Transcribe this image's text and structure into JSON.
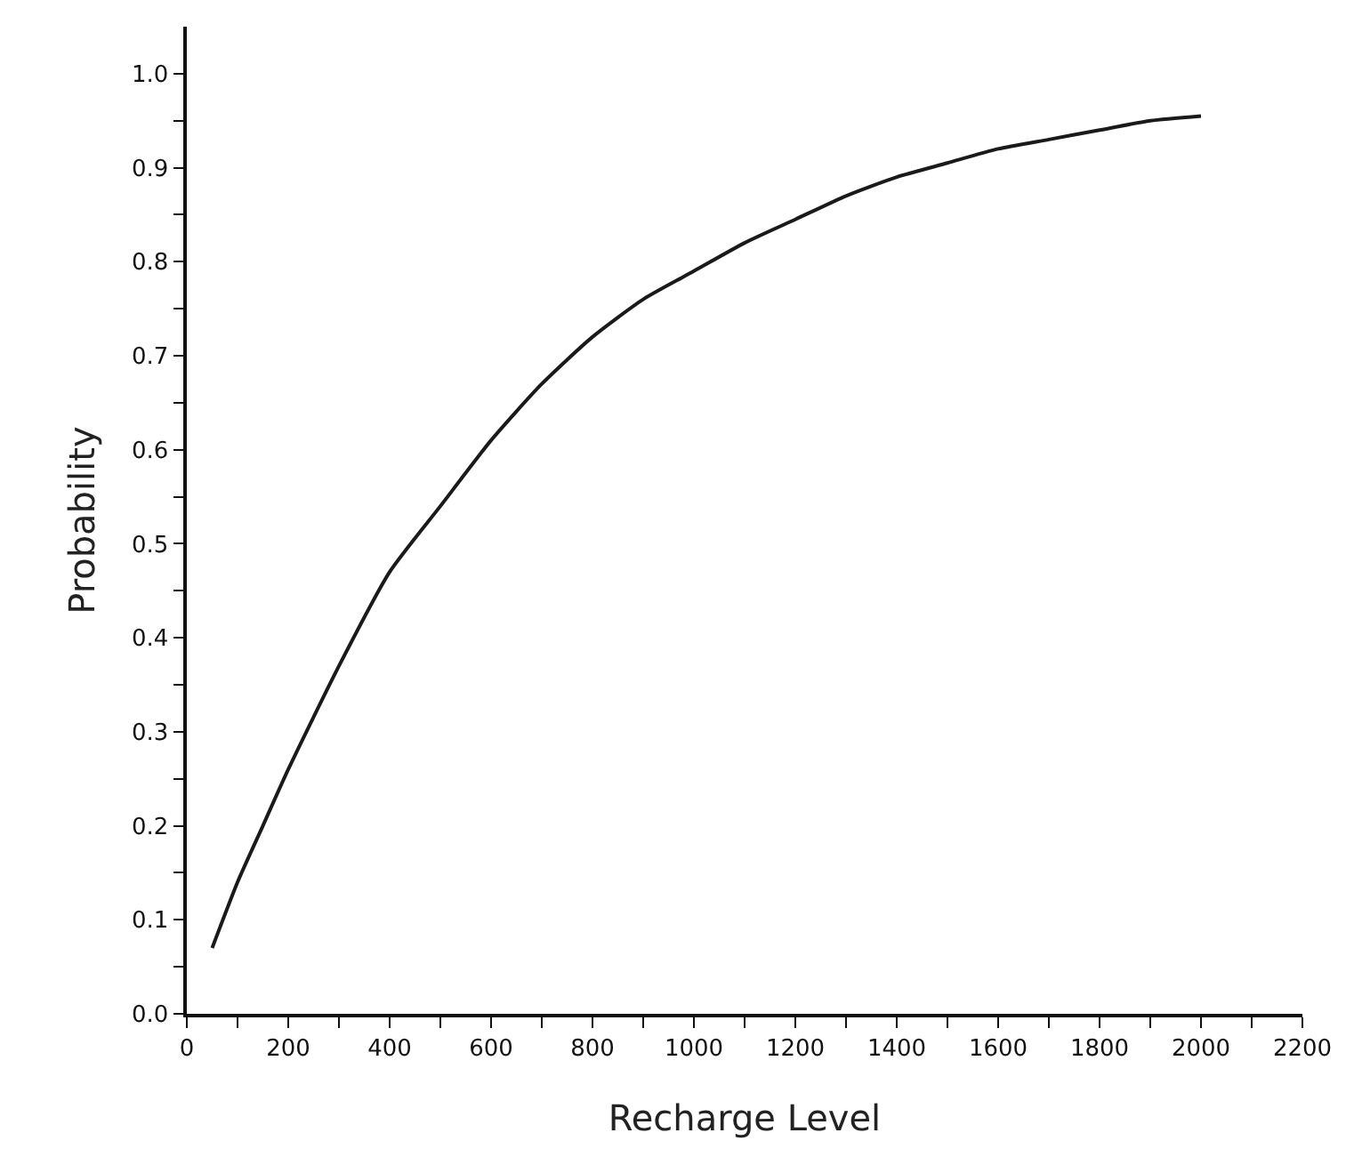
{
  "chart_data": {
    "type": "line",
    "xlabel": "Recharge Level",
    "ylabel": "Probability",
    "x": [
      50,
      100,
      150,
      200,
      300,
      400,
      500,
      600,
      700,
      800,
      900,
      1000,
      1100,
      1200,
      1300,
      1400,
      1500,
      1600,
      1700,
      1800,
      1900,
      2000
    ],
    "series": [
      {
        "color": "#1a1a1a",
        "values": [
          0.07,
          0.14,
          0.2,
          0.26,
          0.37,
          0.47,
          0.54,
          0.61,
          0.67,
          0.72,
          0.76,
          0.79,
          0.82,
          0.845,
          0.87,
          0.89,
          0.905,
          0.92,
          0.93,
          0.94,
          0.95,
          0.955
        ]
      }
    ],
    "xlim": [
      0,
      2200
    ],
    "ylim": [
      0,
      1.05
    ],
    "xticks": [
      0,
      {
        "value": 100,
        "label": null
      },
      200,
      {
        "value": 300,
        "label": null
      },
      400,
      {
        "value": 500,
        "label": null
      },
      600,
      {
        "value": 700,
        "label": null
      },
      800,
      {
        "value": 900,
        "label": null
      },
      1000,
      {
        "value": 1100,
        "label": null
      },
      1200,
      {
        "value": 1300,
        "label": null
      },
      1400,
      {
        "value": 1500,
        "label": null
      },
      1600,
      {
        "value": 1700,
        "label": null
      },
      1800,
      {
        "value": 1900,
        "label": null
      },
      2000,
      {
        "value": 2100,
        "label": null
      },
      2200
    ],
    "yticks": [
      {
        "value": 0,
        "label": "0.0"
      },
      {
        "value": 0.05,
        "label": null
      },
      0.1,
      {
        "value": 0.15,
        "label": null
      },
      0.2,
      {
        "value": 0.25,
        "label": null
      },
      0.3,
      {
        "value": 0.35,
        "label": null
      },
      0.4,
      {
        "value": 0.45,
        "label": null
      },
      0.5,
      {
        "value": 0.55,
        "label": null
      },
      0.6,
      {
        "value": 0.65,
        "label": null
      },
      0.7,
      {
        "value": 0.75,
        "label": null
      },
      0.8,
      {
        "value": 0.85,
        "label": null
      },
      0.9,
      {
        "value": 0.95,
        "label": null
      },
      {
        "value": 1.0,
        "label": "1.0"
      }
    ],
    "marker": "none",
    "line_style": "solid"
  }
}
